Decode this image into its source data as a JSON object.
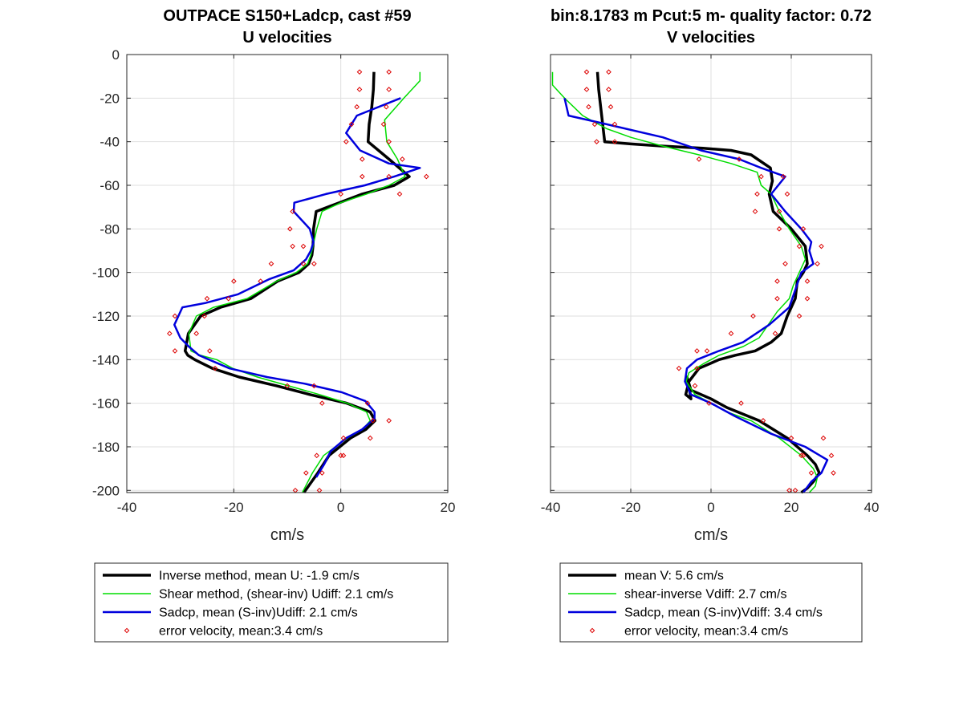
{
  "chart_data": [
    {
      "type": "line",
      "title": "OUTPACE S150+Ladcp, cast #59",
      "subtitle": "U velocities",
      "xlabel": "cm/s",
      "ylabel": "",
      "xlim": [
        -40,
        20
      ],
      "ylim": [
        -201,
        0
      ],
      "xticks": [
        "-40",
        "-20",
        "0",
        "20"
      ],
      "yticks": [
        "0",
        "-20",
        "-40",
        "-60",
        "-80",
        "-100",
        "-120",
        "-140",
        "-160",
        "-180",
        "-200"
      ],
      "grid": true,
      "legend": "below",
      "legend_entries": [
        "Inverse method, mean U:  -1.9 cm/s",
        "Shear method, (shear-inv)  Udiff:  2.1 cm/s",
        "Sadcp, mean (S-inv)Udiff: 2.1 cm/s",
        "error velocity, mean:3.4 cm/s"
      ],
      "series": [
        {
          "color": "#000000",
          "width": 3.5,
          "kind": "line",
          "x": [
            6.2,
            6.1,
            5.8,
            5.3,
            5.1,
            9.0,
            12.8,
            10.0,
            4.0,
            -0.3,
            -4.6,
            -5.1,
            -5.2,
            -5.4,
            -6.0,
            -7.8,
            -11.8,
            -16.8,
            -22.5,
            -26.2,
            -28.5,
            -29.1,
            -28.6,
            -27.3,
            -24.0,
            -19.0,
            -12.0,
            -5.8,
            1.1,
            5.5,
            6.4,
            4.7,
            1.8,
            -2.2,
            -4.3,
            -6.9
          ],
          "y": [
            -8,
            -16,
            -24,
            -32,
            -40,
            -48,
            -56,
            -60,
            -64,
            -68,
            -72,
            -80,
            -88,
            -92,
            -96,
            -100,
            -104,
            -112,
            -116,
            -120,
            -128,
            -136,
            -138,
            -140,
            -144,
            -148,
            -152,
            -156,
            -160,
            -164,
            -168,
            -172,
            -176,
            -184,
            -192,
            -201
          ]
        },
        {
          "color": "#00dd00",
          "width": 1.5,
          "kind": "line",
          "x": [
            14.8,
            14.8,
            11.8,
            8.2,
            8.6,
            10.6,
            12.0,
            9.0,
            4.8,
            0.0,
            -3.5,
            -4.5,
            -5.2,
            -5.6,
            -6.2,
            -8.3,
            -12.0,
            -17.5,
            -23.8,
            -27.0,
            -28.4,
            -28.0,
            -26.2,
            -23.2,
            -20.2,
            -15.6,
            -9.8,
            -4.0,
            1.2,
            4.8,
            5.5,
            4.1,
            1.2,
            -3.2,
            -5.3,
            -7.2
          ],
          "y": [
            -8,
            -12,
            -20,
            -30,
            -40,
            -48,
            -56,
            -60,
            -64,
            -68,
            -72,
            -80,
            -88,
            -92,
            -96,
            -100,
            -104,
            -112,
            -116,
            -120,
            -128,
            -136,
            -138,
            -140,
            -144,
            -148,
            -152,
            -156,
            -160,
            -164,
            -168,
            -172,
            -176,
            -184,
            -192,
            -201
          ]
        },
        {
          "color": "#0000dd",
          "width": 2.5,
          "kind": "line",
          "x": [
            11.2,
            3.0,
            1.0,
            3.6,
            9.0,
            14.8,
            10.0,
            4.5,
            -2.8,
            -8.7,
            -8.8,
            -5.8,
            -5.1,
            -5.6,
            -6.5,
            -8.8,
            -13.3,
            -19.2,
            -25.3,
            -29.6,
            -31.1,
            -30.0,
            -28.4,
            -26.5,
            -20.8,
            -13.8,
            -6.8,
            0.2,
            4.6,
            6.3,
            6.3,
            4.0,
            1.0,
            -1.9,
            -3.1,
            -4.6
          ],
          "y": [
            -20,
            -28,
            -36,
            -44,
            -50,
            -52,
            -56,
            -60,
            -64,
            -68,
            -72,
            -80,
            -86,
            -90,
            -94,
            -99,
            -103,
            -110,
            -114,
            -116,
            -124,
            -130,
            -134,
            -138,
            -144,
            -148,
            -151,
            -155,
            -159,
            -164,
            -167,
            -172,
            -176,
            -182,
            -188,
            -194
          ]
        },
        {
          "color": "#dd0000",
          "kind": "markers",
          "x": [
            3.5,
            9.0,
            3.5,
            9.0,
            3.0,
            8.5,
            2.0,
            8.0,
            1.0,
            9.0,
            4.0,
            11.5,
            4.0,
            9.0,
            16.0,
            0.0,
            11.0,
            -9.0,
            -9.5,
            -7.0,
            -9.0,
            -5.0,
            -13.0,
            -7.0,
            -20.0,
            -15.0,
            -25.0,
            -21.0,
            -31.0,
            -25.5,
            -32.0,
            -27.0,
            -31.0,
            -24.5,
            -23.5,
            -10.0,
            -5.0,
            -3.5,
            5.0,
            6.0,
            9.0,
            0.5,
            5.5,
            0.0,
            -4.5,
            0.5,
            -6.5,
            -3.5,
            -8.5,
            -4.0
          ],
          "y": [
            -8,
            -8,
            -16,
            -16,
            -24,
            -24,
            -32,
            -32,
            -40,
            -40,
            -48,
            -48,
            -56,
            -56,
            -56,
            -64,
            -64,
            -72,
            -80,
            -88,
            -88,
            -96,
            -96,
            -96,
            -104,
            -104,
            -112,
            -112,
            -120,
            -120,
            -128,
            -128,
            -136,
            -136,
            -144,
            -152,
            -152,
            -160,
            -160,
            -168,
            -168,
            -176,
            -176,
            -184,
            -184,
            -184,
            -192,
            -192,
            -200,
            -200
          ]
        }
      ]
    },
    {
      "type": "line",
      "title": "bin:8.1783 m  Pcut:5 m- quality factor:  0.72",
      "subtitle": "V velocities",
      "xlabel": "cm/s",
      "ylabel": "",
      "xlim": [
        -40,
        40
      ],
      "ylim": [
        -201,
        0
      ],
      "xticks": [
        "-40",
        "-20",
        "0",
        "20",
        "40"
      ],
      "yticks": [],
      "grid": true,
      "legend": "below",
      "legend_entries": [
        "mean V:  5.6 cm/s",
        "shear-inverse Vdiff:  2.7 cm/s",
        "Sadcp, mean (S-inv)Vdiff: 3.4 cm/s",
        "error velocity, mean:3.4 cm/s"
      ],
      "series": [
        {
          "color": "#000000",
          "width": 3.5,
          "kind": "line",
          "x": [
            -28.3,
            -28.0,
            -27.5,
            -27.0,
            -26.5,
            -20.0,
            -12.0,
            -2.0,
            5.0,
            10.0,
            14.8,
            15.3,
            14.5,
            15.5,
            20.0,
            23.5,
            24.0,
            23.0,
            21.5,
            21.0,
            19.0,
            17.5,
            15.0,
            11.0,
            6.0,
            2.0,
            -3.0,
            -5.5,
            -6.3,
            -5.0,
            -5.5,
            -6.0,
            -5.0,
            0.0,
            4.0,
            12.0,
            19.0,
            24.0,
            26.0,
            27.0,
            25.5,
            24.0,
            22.5
          ],
          "y": [
            -8,
            -16,
            -24,
            -32,
            -40,
            -41,
            -42,
            -43,
            -44,
            -46,
            -52,
            -58,
            -64,
            -72,
            -80,
            -88,
            -96,
            -100,
            -104,
            -112,
            -120,
            -128,
            -132,
            -136,
            -138,
            -140,
            -144,
            -150,
            -156,
            -158,
            -152,
            -148,
            -154,
            -158,
            -162,
            -168,
            -176,
            -184,
            -188,
            -192,
            -196,
            -199,
            -201
          ]
        },
        {
          "color": "#00dd00",
          "width": 1.5,
          "kind": "line",
          "x": [
            -39.5,
            -39.5,
            -36.5,
            -32.0,
            -26.0,
            -20.0,
            -12.0,
            -3.0,
            5.0,
            11.5,
            12.5,
            15.0,
            17.0,
            19.5,
            22.5,
            23.5,
            22.0,
            20.5,
            19.5,
            16.5,
            15.0,
            13.5,
            12.0,
            8.0,
            2.0,
            -2.0,
            -5.5,
            -6.2,
            -4.0,
            0.0,
            4.0,
            10.0,
            17.0,
            22.5,
            25.5,
            26.5,
            26.0,
            24.5
          ],
          "y": [
            -8,
            -14,
            -20,
            -28,
            -34,
            -38,
            -42,
            -46,
            -50,
            -54,
            -60,
            -64,
            -72,
            -80,
            -88,
            -94,
            -100,
            -106,
            -112,
            -118,
            -122,
            -126,
            -130,
            -134,
            -138,
            -142,
            -146,
            -150,
            -156,
            -160,
            -164,
            -168,
            -176,
            -184,
            -190,
            -194,
            -198,
            -201
          ]
        },
        {
          "color": "#0000dd",
          "width": 2.5,
          "kind": "line",
          "x": [
            -36.5,
            -35.5,
            -26.0,
            -12.0,
            -2.5,
            7.0,
            12.5,
            15.5,
            18.5,
            15.0,
            18.5,
            22.5,
            25.0,
            24.5,
            25.5,
            22.5,
            21.0,
            19.5,
            14.5,
            8.0,
            2.0,
            -3.5,
            -6.0,
            -6.5,
            -5.5,
            -5.0,
            0.0,
            6.0,
            15.0,
            23.5,
            29.0,
            27.5,
            25.0,
            23.0
          ],
          "y": [
            -20,
            -28,
            -32,
            -38,
            -44,
            -48,
            -52,
            -54,
            -56,
            -64,
            -72,
            -80,
            -86,
            -90,
            -96,
            -100,
            -108,
            -116,
            -124,
            -132,
            -136,
            -140,
            -144,
            -150,
            -154,
            -156,
            -160,
            -166,
            -174,
            -180,
            -186,
            -192,
            -196,
            -201
          ]
        },
        {
          "color": "#dd0000",
          "kind": "markers",
          "x": [
            -31.0,
            -25.5,
            -31.0,
            -25.5,
            -30.5,
            -25.0,
            -29.0,
            -24.0,
            -28.5,
            -24.0,
            -3.0,
            7.0,
            12.5,
            18.0,
            11.5,
            19.0,
            11.0,
            17.0,
            17.0,
            23.0,
            27.5,
            22.0,
            26.5,
            18.5,
            24.0,
            16.5,
            24.0,
            16.5,
            22.0,
            10.5,
            16.0,
            5.0,
            -1.0,
            -3.5,
            -3.5,
            -8.0,
            -4.0,
            -0.5,
            7.5,
            13.0,
            20.0,
            28.0,
            30.0,
            23.0,
            22.5,
            30.5,
            25.0,
            21.0,
            19.5
          ],
          "y": [
            -8,
            -8,
            -16,
            -16,
            -24,
            -24,
            -32,
            -32,
            -40,
            -40,
            -48,
            -48,
            -56,
            -56,
            -64,
            -64,
            -72,
            -72,
            -80,
            -80,
            -88,
            -88,
            -96,
            -96,
            -104,
            -104,
            -112,
            -112,
            -120,
            -120,
            -128,
            -128,
            -136,
            -136,
            -144,
            -144,
            -152,
            -160,
            -160,
            -168,
            -176,
            -176,
            -184,
            -184,
            -184,
            -192,
            -192,
            -200,
            -200
          ]
        }
      ]
    }
  ]
}
